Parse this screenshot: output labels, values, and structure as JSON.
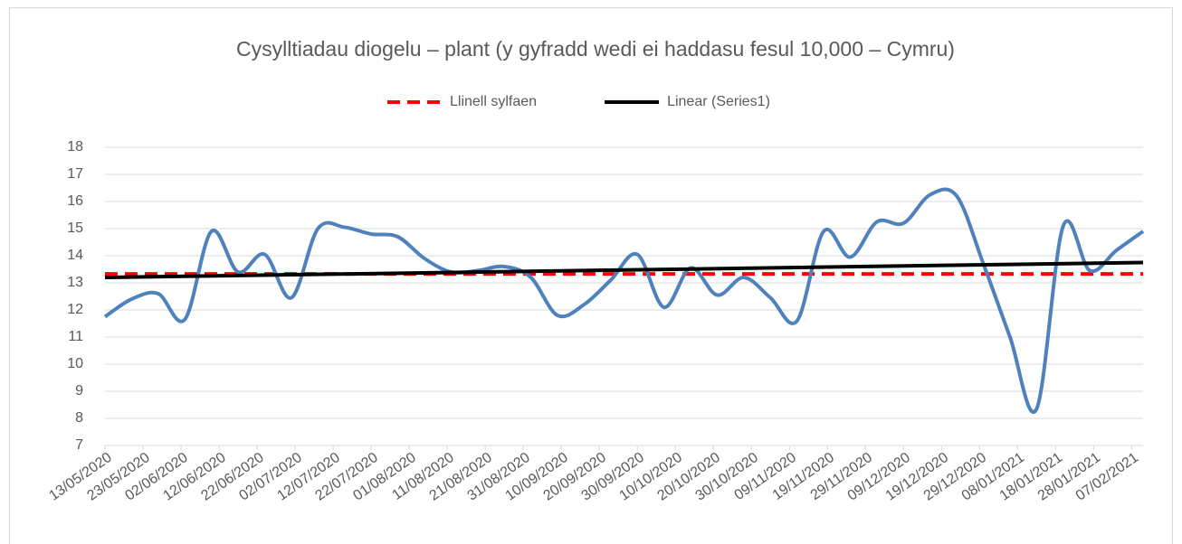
{
  "chart_data": {
    "type": "line",
    "title": "Cysylltiadau diogelu – plant (y gyfradd wedi ei haddasu fesul 10,000 – Cymru)",
    "x": [
      "13/05/2020",
      "20/05/2020",
      "27/05/2020",
      "03/06/2020",
      "10/06/2020",
      "17/06/2020",
      "24/06/2020",
      "01/07/2020",
      "08/07/2020",
      "15/07/2020",
      "22/07/2020",
      "29/07/2020",
      "05/08/2020",
      "12/08/2020",
      "19/08/2020",
      "26/08/2020",
      "02/09/2020",
      "09/09/2020",
      "16/09/2020",
      "23/09/2020",
      "30/09/2020",
      "07/10/2020",
      "14/10/2020",
      "21/10/2020",
      "28/10/2020",
      "04/11/2020",
      "11/11/2020",
      "18/11/2020",
      "25/11/2020",
      "02/12/2020",
      "09/12/2020",
      "16/12/2020",
      "23/12/2020",
      "30/12/2020",
      "06/01/2021",
      "13/01/2021",
      "20/01/2021",
      "27/01/2021",
      "03/02/2021",
      "10/02/2021"
    ],
    "series": [
      {
        "color": "#4f81bd",
        "values": [
          11.75,
          12.4,
          12.6,
          11.65,
          14.9,
          13.4,
          14.05,
          12.45,
          15.0,
          15.05,
          14.8,
          14.7,
          13.9,
          13.4,
          13.45,
          13.6,
          13.2,
          11.8,
          12.2,
          13.1,
          14.05,
          12.1,
          13.55,
          12.55,
          13.2,
          12.45,
          11.6,
          14.9,
          13.95,
          15.25,
          15.2,
          16.25,
          16.2,
          13.7,
          11.0,
          8.35,
          15.1,
          13.45,
          14.2,
          14.9
        ]
      },
      {
        "name": "Llinell sylfaen",
        "color": "#ff0000",
        "dashed": true,
        "x": [
          "13/05/2020",
          "10/02/2021"
        ],
        "values": [
          13.33,
          13.33
        ]
      },
      {
        "name": "Linear (Series1)",
        "color": "#000000",
        "x": [
          "13/05/2020",
          "10/02/2021"
        ],
        "values": [
          13.2,
          13.75
        ]
      }
    ],
    "xlim": [
      "13/05/2020",
      "10/02/2021"
    ],
    "xticks": [
      "13/05/2020",
      "23/05/2020",
      "02/06/2020",
      "12/06/2020",
      "22/06/2020",
      "02/07/2020",
      "12/07/2020",
      "22/07/2020",
      "01/08/2020",
      "11/08/2020",
      "21/08/2020",
      "31/08/2020",
      "10/09/2020",
      "20/09/2020",
      "30/09/2020",
      "10/10/2020",
      "20/10/2020",
      "30/10/2020",
      "09/11/2020",
      "19/11/2020",
      "29/11/2020",
      "09/12/2020",
      "19/12/2020",
      "29/12/2020",
      "08/01/2021",
      "18/01/2021",
      "28/01/2021",
      "07/02/2021"
    ],
    "ylim": [
      7,
      18
    ],
    "yticks": [
      7,
      8,
      9,
      10,
      11,
      12,
      13,
      14,
      15,
      16,
      17,
      18
    ],
    "grid": true,
    "legend": "top"
  }
}
